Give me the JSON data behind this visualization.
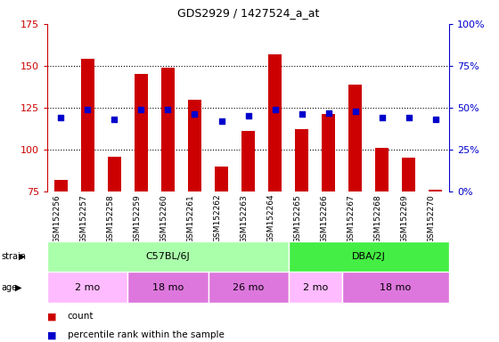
{
  "title": "GDS2929 / 1427524_a_at",
  "samples": [
    "GSM152256",
    "GSM152257",
    "GSM152258",
    "GSM152259",
    "GSM152260",
    "GSM152261",
    "GSM152262",
    "GSM152263",
    "GSM152264",
    "GSM152265",
    "GSM152266",
    "GSM152267",
    "GSM152268",
    "GSM152269",
    "GSM152270"
  ],
  "counts": [
    82,
    154,
    96,
    145,
    149,
    130,
    90,
    111,
    157,
    112,
    121,
    139,
    101,
    95,
    76
  ],
  "percentiles": [
    44,
    49,
    43,
    49,
    49,
    46,
    42,
    45,
    49,
    46,
    47,
    48,
    44,
    44,
    43
  ],
  "ymin": 75,
  "ymax": 175,
  "yticks_left": [
    75,
    100,
    125,
    150,
    175
  ],
  "y2min": 0,
  "y2max": 100,
  "yticks_right": [
    0,
    25,
    50,
    75,
    100
  ],
  "bar_color": "#cc0000",
  "dot_color": "#0000cc",
  "bar_width": 0.5,
  "strain_groups": [
    {
      "label": "C57BL/6J",
      "start": 0,
      "end": 9,
      "color": "#aaffaa"
    },
    {
      "label": "DBA/2J",
      "start": 9,
      "end": 15,
      "color": "#44ee44"
    }
  ],
  "age_groups": [
    {
      "label": "2 mo",
      "start": 0,
      "end": 3,
      "color": "#ffbbff"
    },
    {
      "label": "18 mo",
      "start": 3,
      "end": 6,
      "color": "#dd77dd"
    },
    {
      "label": "26 mo",
      "start": 6,
      "end": 9,
      "color": "#dd77dd"
    },
    {
      "label": "2 mo",
      "start": 9,
      "end": 11,
      "color": "#ffbbff"
    },
    {
      "label": "18 mo",
      "start": 11,
      "end": 15,
      "color": "#dd77dd"
    }
  ],
  "plot_bg": "#ffffff",
  "xlabel_bg": "#c8c8c8",
  "legend_count_color": "#cc0000",
  "legend_dot_color": "#0000cc"
}
